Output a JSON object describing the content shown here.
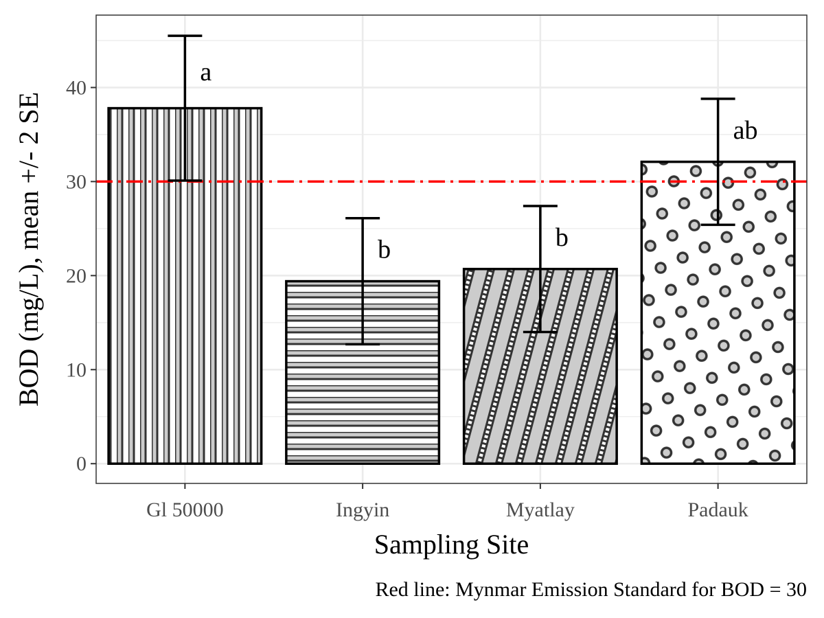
{
  "chart_data": {
    "type": "bar",
    "categories": [
      "Gl 50000",
      "Ingyin",
      "Myatlay",
      "Padauk"
    ],
    "values": [
      37.8,
      19.4,
      20.7,
      32.1
    ],
    "error_low": [
      30.1,
      12.7,
      14.0,
      25.4
    ],
    "error_high": [
      45.5,
      26.1,
      27.4,
      38.8
    ],
    "significance_labels": [
      "a",
      "b",
      "b",
      "ab"
    ],
    "patterns": [
      "vertical-stripes",
      "horizontal-stripes",
      "diagonal-checked-stripes",
      "circles"
    ],
    "xlabel": "Sampling Site",
    "ylabel": "BOD (mg/L), mean +/- 2 SE",
    "ylim": [
      -2.1,
      47.7
    ],
    "yticks": [
      0,
      10,
      20,
      30,
      40
    ],
    "reference_line": {
      "value": 30,
      "color": "#ff0000",
      "style": "dash-dot"
    },
    "caption": "Red line: Mynmar Emission Standard for BOD = 30",
    "grid": true,
    "colors": {
      "bar_fill": "#cccccc",
      "bar_stroke": "#000000",
      "pattern_stroke": "#333333",
      "panel_border": "#333333",
      "grid": "#ebebeb"
    }
  }
}
